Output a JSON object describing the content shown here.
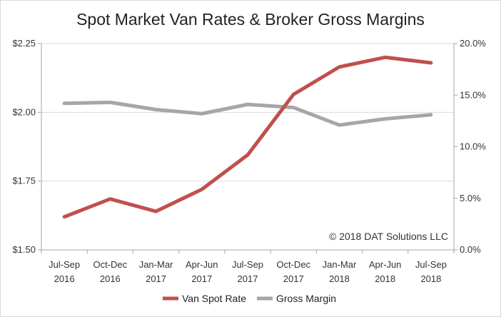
{
  "chart_data": {
    "type": "line",
    "title": "Spot Market Van Rates & Broker Gross Margins",
    "categories": [
      [
        "Jul-Sep",
        "2016"
      ],
      [
        "Oct-Dec",
        "2016"
      ],
      [
        "Jan-Mar",
        "2017"
      ],
      [
        "Apr-Jun",
        "2017"
      ],
      [
        "Jul-Sep",
        "2017"
      ],
      [
        "Oct-Dec",
        "2017"
      ],
      [
        "Jan-Mar",
        "2018"
      ],
      [
        "Apr-Jun",
        "2018"
      ],
      [
        "Jul-Sep",
        "2018"
      ]
    ],
    "y_left": {
      "min": 1.5,
      "max": 2.25,
      "ticks": [
        "$1.50",
        "$1.75",
        "$2.00",
        "$2.25"
      ],
      "tick_values": [
        1.5,
        1.75,
        2.0,
        2.25
      ]
    },
    "y_right": {
      "min": 0,
      "max": 20,
      "ticks": [
        "0.0%",
        "5.0%",
        "10.0%",
        "15.0%",
        "20.0%"
      ],
      "tick_values": [
        0,
        5,
        10,
        15,
        20
      ]
    },
    "series": [
      {
        "name": "Van Spot Rate",
        "axis": "left",
        "color": "#c0504d",
        "values": [
          1.62,
          1.685,
          1.64,
          1.72,
          1.845,
          2.065,
          2.165,
          2.2,
          2.18
        ]
      },
      {
        "name": "Gross Margin",
        "axis": "right",
        "color": "#a6a6a6",
        "values": [
          14.2,
          14.3,
          13.6,
          13.2,
          14.1,
          13.8,
          12.1,
          12.7,
          13.1
        ]
      }
    ],
    "grid": "horizontal",
    "legend": "bottom",
    "annotation": "© 2018 DAT Solutions LLC"
  }
}
